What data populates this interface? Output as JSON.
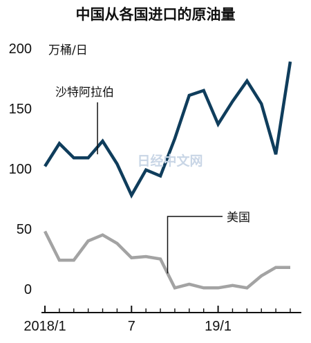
{
  "chart_data": {
    "type": "line",
    "title": "中国从各国进口的原油量",
    "unit_label": "万桶/日",
    "ylim": [
      0,
      200
    ],
    "y_ticks": [
      0,
      50,
      100,
      150,
      200
    ],
    "x": [
      "2018/1",
      "2018/2",
      "2018/3",
      "2018/4",
      "2018/5",
      "2018/6",
      "2018/7",
      "2018/8",
      "2018/9",
      "2018/10",
      "2018/11",
      "2018/12",
      "2019/1",
      "2019/2",
      "2019/3",
      "2019/4",
      "2019/5",
      "2019/6"
    ],
    "x_tick_labels": [
      {
        "at": "2018/1",
        "label": "2018/1"
      },
      {
        "at": "2018/7",
        "label": "7"
      },
      {
        "at": "2019/1",
        "label": "19/1"
      }
    ],
    "series": [
      {
        "name": "沙特阿拉伯",
        "color": "#0f3d5c",
        "values": [
          102,
          121,
          109,
          109,
          123,
          104,
          78,
          99,
          94,
          125,
          161,
          165,
          137,
          156,
          173,
          154,
          112,
          189
        ]
      },
      {
        "name": "美国",
        "color": "#a3a3a3",
        "values": [
          48,
          24,
          24,
          40,
          45,
          38,
          26,
          27,
          25,
          1,
          4,
          1,
          1,
          3,
          1,
          11,
          18,
          18
        ]
      }
    ],
    "watermark": "日经中文网"
  }
}
